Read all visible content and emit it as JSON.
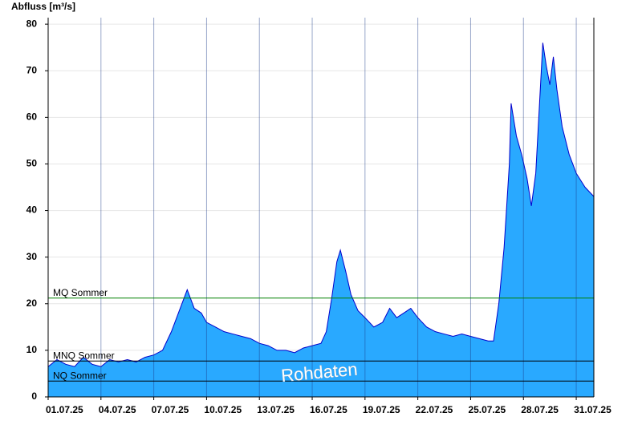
{
  "chart_data": {
    "type": "area",
    "y_label": "Abfluss [m³/s]",
    "x": [
      0,
      0.5,
      1,
      1.5,
      2,
      2.5,
      3,
      3.5,
      4,
      4.5,
      5,
      5.5,
      6,
      6.5,
      7,
      7.5,
      7.9,
      8.3,
      8.7,
      9,
      9.5,
      10,
      10.5,
      11,
      11.5,
      12,
      12.5,
      13,
      13.5,
      14,
      14.5,
      15,
      15.5,
      15.8,
      16.1,
      16.4,
      16.6,
      16.9,
      17.2,
      17.6,
      18,
      18.5,
      19,
      19.4,
      19.8,
      20.2,
      20.6,
      21,
      21.5,
      22,
      22.5,
      23,
      23.5,
      24,
      24.5,
      25,
      25.3,
      25.6,
      25.9,
      26.2,
      26.3,
      26.6,
      26.9,
      27.2,
      27.45,
      27.7,
      27.9,
      28.1,
      28.3,
      28.5,
      28.7,
      28.9,
      29.2,
      29.6,
      30,
      30.5,
      31
    ],
    "values": [
      6.5,
      8,
      7,
      6.5,
      8.5,
      7,
      6.5,
      8,
      7.5,
      8,
      7.5,
      8.5,
      9,
      10,
      14,
      19,
      23,
      19,
      18,
      16,
      15,
      14,
      13.5,
      13,
      12.5,
      11.5,
      11,
      10,
      10,
      9.5,
      10.5,
      11,
      11.5,
      14,
      21,
      29,
      31.5,
      27,
      22,
      18.5,
      17,
      15,
      16,
      19,
      17,
      18,
      19,
      17,
      15,
      14,
      13.5,
      13,
      13.5,
      13,
      12.5,
      12,
      12,
      20,
      32,
      50,
      63,
      56,
      52,
      47,
      41,
      48,
      62,
      76,
      71,
      67,
      73,
      66,
      58,
      52,
      48,
      45,
      43
    ],
    "color": "#29a9ff",
    "line_color": "#0000cc",
    "xlim": [
      0,
      31
    ],
    "xticks": [
      {
        "value": 0,
        "label": "01.07.25"
      },
      {
        "value": 3,
        "label": "04.07.25"
      },
      {
        "value": 6,
        "label": "07.07.25"
      },
      {
        "value": 9,
        "label": "10.07.25"
      },
      {
        "value": 12,
        "label": "13.07.25"
      },
      {
        "value": 15,
        "label": "16.07.25"
      },
      {
        "value": 18,
        "label": "19.07.25"
      },
      {
        "value": 21,
        "label": "22.07.25"
      },
      {
        "value": 24,
        "label": "25.07.25"
      },
      {
        "value": 27,
        "label": "28.07.25"
      },
      {
        "value": 30,
        "label": "31.07.25"
      }
    ],
    "ylim": [
      0,
      81.4
    ],
    "yticks": [
      0,
      10,
      20,
      30,
      40,
      50,
      60,
      70,
      80
    ],
    "grid": true,
    "reference_lines": [
      {
        "name": "MQ Sommer",
        "value": 21.2,
        "color": "#008000"
      },
      {
        "name": "MNQ Sommer",
        "value": 7.7,
        "color": "#000000"
      },
      {
        "name": "NQ Sommer",
        "value": 3.4,
        "color": "#000000"
      }
    ],
    "watermark": "Rohdaten"
  }
}
